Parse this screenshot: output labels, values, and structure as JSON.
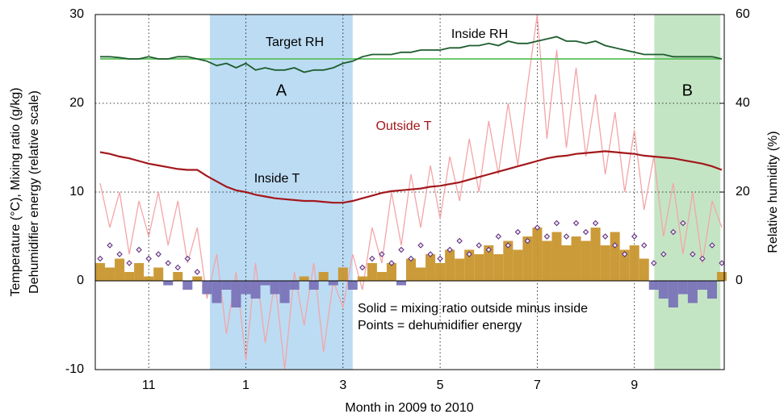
{
  "chart_data": {
    "type": "line",
    "x_label": "Month in 2009 to 2010",
    "y_label": [
      "Temperature (°C), Mixing ratio (g/kg)",
      "Dehumidifier energy (relative scale)"
    ],
    "y2_label": "Relative humidity (%)",
    "xlim": [
      9.9,
      22.85
    ],
    "xticks": [
      11,
      {
        "value": 13,
        "label": "1"
      },
      {
        "value": 15,
        "label": "3"
      },
      {
        "value": 17,
        "label": "5"
      },
      {
        "value": 19,
        "label": "7"
      },
      {
        "value": 21,
        "label": "9"
      }
    ],
    "ylim": [
      -10,
      30
    ],
    "yticks": [
      -10,
      0,
      10,
      20,
      30
    ],
    "y2lim": [
      -20,
      60
    ],
    "y2ticks": [
      0,
      20,
      40,
      60
    ],
    "grid": true,
    "regions": [
      {
        "label": "A",
        "x": [
          12.26,
          15.2
        ],
        "color": "#bcdcf3"
      },
      {
        "label": "B",
        "x": [
          21.41,
          22.77
        ],
        "color": "#c4e5c4"
      }
    ],
    "annotations": [
      "Solid = mixing ratio outside minus inside",
      "Points = dehumidifier energy"
    ],
    "series": [
      {
        "name": "Outside T",
        "kind": "line",
        "color": "#f4a5a8",
        "label_color": "#a3181c",
        "x": [
          10.0,
          10.2,
          10.4,
          10.6,
          10.8,
          11.0,
          11.2,
          11.4,
          11.6,
          11.8,
          12.0,
          12.2,
          12.4,
          12.6,
          12.8,
          13.0,
          13.2,
          13.4,
          13.6,
          13.8,
          14.0,
          14.2,
          14.4,
          14.6,
          14.8,
          15.0,
          15.2,
          15.4,
          15.6,
          15.8,
          16.0,
          16.2,
          16.4,
          16.6,
          16.8,
          17.0,
          17.2,
          17.4,
          17.6,
          17.8,
          18.0,
          18.2,
          18.4,
          18.6,
          18.8,
          19.0,
          19.2,
          19.4,
          19.6,
          19.8,
          20.0,
          20.2,
          20.4,
          20.6,
          20.8,
          21.0,
          21.2,
          21.4,
          21.6,
          21.8,
          22.0,
          22.2,
          22.4,
          22.6,
          22.8
        ],
        "values": [
          11,
          6,
          10,
          3,
          9,
          5,
          10,
          4,
          9,
          2,
          6,
          -2,
          3,
          -6,
          1,
          -9,
          2,
          -7,
          0,
          -10,
          1,
          -5,
          2,
          -8,
          0,
          -3,
          3,
          -1,
          6,
          2,
          10,
          4,
          12,
          6,
          13,
          7,
          14,
          9,
          16,
          10,
          18,
          12,
          20,
          13,
          22,
          30,
          16,
          26,
          15,
          24,
          14,
          21,
          12,
          19,
          10,
          17,
          8,
          14,
          5,
          11,
          3,
          10,
          2,
          9,
          6
        ]
      },
      {
        "kind": "area",
        "color": "#c8962e",
        "neg_color": "#7a73b8",
        "x": [
          10.0,
          10.2,
          10.4,
          10.6,
          10.8,
          11.0,
          11.2,
          11.4,
          11.6,
          11.8,
          12.0,
          12.2,
          12.4,
          12.6,
          12.8,
          13.0,
          13.2,
          13.4,
          13.6,
          13.8,
          14.0,
          14.2,
          14.4,
          14.6,
          14.8,
          15.0,
          15.2,
          15.4,
          15.6,
          15.8,
          16.0,
          16.2,
          16.4,
          16.6,
          16.8,
          17.0,
          17.2,
          17.4,
          17.6,
          17.8,
          18.0,
          18.2,
          18.4,
          18.6,
          18.8,
          19.0,
          19.2,
          19.4,
          19.6,
          19.8,
          20.0,
          20.2,
          20.4,
          20.6,
          20.8,
          21.0,
          21.2,
          21.4,
          21.6,
          21.8,
          22.0,
          22.2,
          22.4,
          22.6,
          22.8
        ],
        "values": [
          2,
          1.5,
          2.5,
          1,
          2,
          0.5,
          1.5,
          -0.5,
          1,
          -1,
          0.5,
          -1.5,
          -2.5,
          -1,
          -3,
          -1.5,
          -2,
          -0.5,
          -1.5,
          -2.5,
          -1,
          0.5,
          -1,
          1,
          -0.5,
          1.5,
          -1,
          0.5,
          2,
          1,
          2,
          -0.5,
          2.5,
          1.5,
          3,
          2,
          3.5,
          2.5,
          3.5,
          3,
          4,
          3,
          4.5,
          3.5,
          5,
          6,
          4.5,
          5.5,
          4,
          5,
          4.5,
          6,
          4,
          5.5,
          3.5,
          4,
          2.5,
          -1,
          -2,
          -3,
          -1.5,
          -2.5,
          -1,
          -2,
          1
        ]
      },
      {
        "name": "Inside T",
        "kind": "line",
        "color": "#a3181c",
        "x": [
          10.0,
          10.2,
          10.4,
          10.6,
          10.8,
          11.0,
          11.2,
          11.4,
          11.6,
          11.8,
          12.0,
          12.2,
          12.4,
          12.6,
          12.8,
          13.0,
          13.2,
          13.4,
          13.6,
          13.8,
          14.0,
          14.2,
          14.4,
          14.6,
          14.8,
          15.0,
          15.2,
          15.4,
          15.6,
          15.8,
          16.0,
          16.2,
          16.4,
          16.6,
          16.8,
          17.0,
          17.2,
          17.4,
          17.6,
          17.8,
          18.0,
          18.2,
          18.4,
          18.6,
          18.8,
          19.0,
          19.2,
          19.4,
          19.6,
          19.8,
          20.0,
          20.2,
          20.4,
          20.6,
          20.8,
          21.0,
          21.2,
          21.4,
          21.6,
          21.8,
          22.0,
          22.2,
          22.4,
          22.6,
          22.8
        ],
        "values": [
          14.5,
          14.3,
          14.0,
          13.8,
          13.5,
          13.2,
          13.0,
          12.8,
          12.6,
          12.5,
          12.5,
          11.8,
          11.2,
          10.6,
          10.2,
          10.0,
          9.7,
          9.5,
          9.3,
          9.2,
          9.1,
          9.0,
          9.0,
          8.9,
          8.8,
          8.8,
          9.0,
          9.3,
          9.6,
          9.9,
          10.1,
          10.2,
          10.3,
          10.4,
          10.6,
          10.7,
          10.9,
          11.1,
          11.4,
          11.7,
          12.0,
          12.3,
          12.6,
          12.9,
          13.2,
          13.5,
          13.8,
          14.0,
          14.1,
          14.3,
          14.4,
          14.5,
          14.6,
          14.5,
          14.4,
          14.3,
          14.1,
          14.0,
          13.9,
          13.8,
          13.6,
          13.4,
          13.2,
          12.9,
          12.5
        ]
      },
      {
        "name": "Target RH",
        "kind": "line",
        "axis": "y2",
        "color": "#5cbf5c",
        "x": [
          10.0,
          22.8
        ],
        "values": [
          50,
          50
        ]
      },
      {
        "name": "Inside RH",
        "kind": "line",
        "axis": "y2",
        "color": "#1e5e2e",
        "x": [
          10.0,
          10.2,
          10.4,
          10.6,
          10.8,
          11.0,
          11.2,
          11.4,
          11.6,
          11.8,
          12.0,
          12.2,
          12.4,
          12.6,
          12.8,
          13.0,
          13.2,
          13.4,
          13.6,
          13.8,
          14.0,
          14.2,
          14.4,
          14.6,
          14.8,
          15.0,
          15.2,
          15.4,
          15.6,
          15.8,
          16.0,
          16.2,
          16.4,
          16.6,
          16.8,
          17.0,
          17.2,
          17.4,
          17.6,
          17.8,
          18.0,
          18.2,
          18.4,
          18.6,
          18.8,
          19.0,
          19.2,
          19.4,
          19.6,
          19.8,
          20.0,
          20.2,
          20.4,
          20.6,
          20.8,
          21.0,
          21.2,
          21.4,
          21.6,
          21.8,
          22.0,
          22.2,
          22.4,
          22.6,
          22.8
        ],
        "values": [
          50.5,
          50.5,
          50.3,
          50,
          50,
          50.5,
          50,
          50,
          50.5,
          50.5,
          50,
          49.5,
          48.5,
          49,
          48,
          49,
          47.5,
          48,
          47.5,
          47.5,
          48,
          47,
          47.5,
          47.5,
          48,
          49,
          49.5,
          50.5,
          51,
          51,
          51,
          51.5,
          51.5,
          52,
          52,
          52,
          52.5,
          52.5,
          53,
          53,
          53.5,
          53,
          54,
          53.5,
          53.5,
          54,
          54.5,
          55,
          54,
          54,
          53.5,
          54,
          53,
          52.5,
          52,
          51.5,
          51,
          51,
          51,
          50.5,
          50.5,
          50.5,
          50.5,
          50.5,
          50
        ]
      },
      {
        "kind": "points",
        "color": "#5a2a7a",
        "x": [
          10.0,
          10.2,
          10.4,
          10.6,
          10.8,
          11.0,
          11.2,
          11.4,
          11.6,
          11.8,
          12.0,
          15.4,
          15.6,
          15.8,
          16.0,
          16.2,
          16.4,
          16.6,
          16.8,
          17.0,
          17.2,
          17.4,
          17.6,
          17.8,
          18.0,
          18.2,
          18.4,
          18.6,
          18.8,
          19.0,
          19.2,
          19.4,
          19.6,
          19.8,
          20.0,
          20.2,
          20.4,
          20.6,
          20.8,
          21.0,
          21.2,
          21.4,
          21.6,
          21.8,
          22.0,
          22.2,
          22.4,
          22.6,
          22.8
        ],
        "values": [
          2.5,
          4,
          3,
          2,
          3.5,
          2.5,
          3,
          2,
          1.5,
          2.5,
          1,
          1.5,
          2.5,
          3,
          2,
          3.5,
          2.5,
          4,
          3,
          2.5,
          3.5,
          4.5,
          3,
          4,
          3.5,
          5,
          4,
          5.5,
          4.5,
          6,
          5,
          6.5,
          5,
          6.5,
          5.5,
          6.5,
          5,
          4,
          3,
          5,
          4,
          2,
          3,
          5.5,
          6.5,
          3,
          2.5,
          4,
          2
        ]
      }
    ]
  }
}
